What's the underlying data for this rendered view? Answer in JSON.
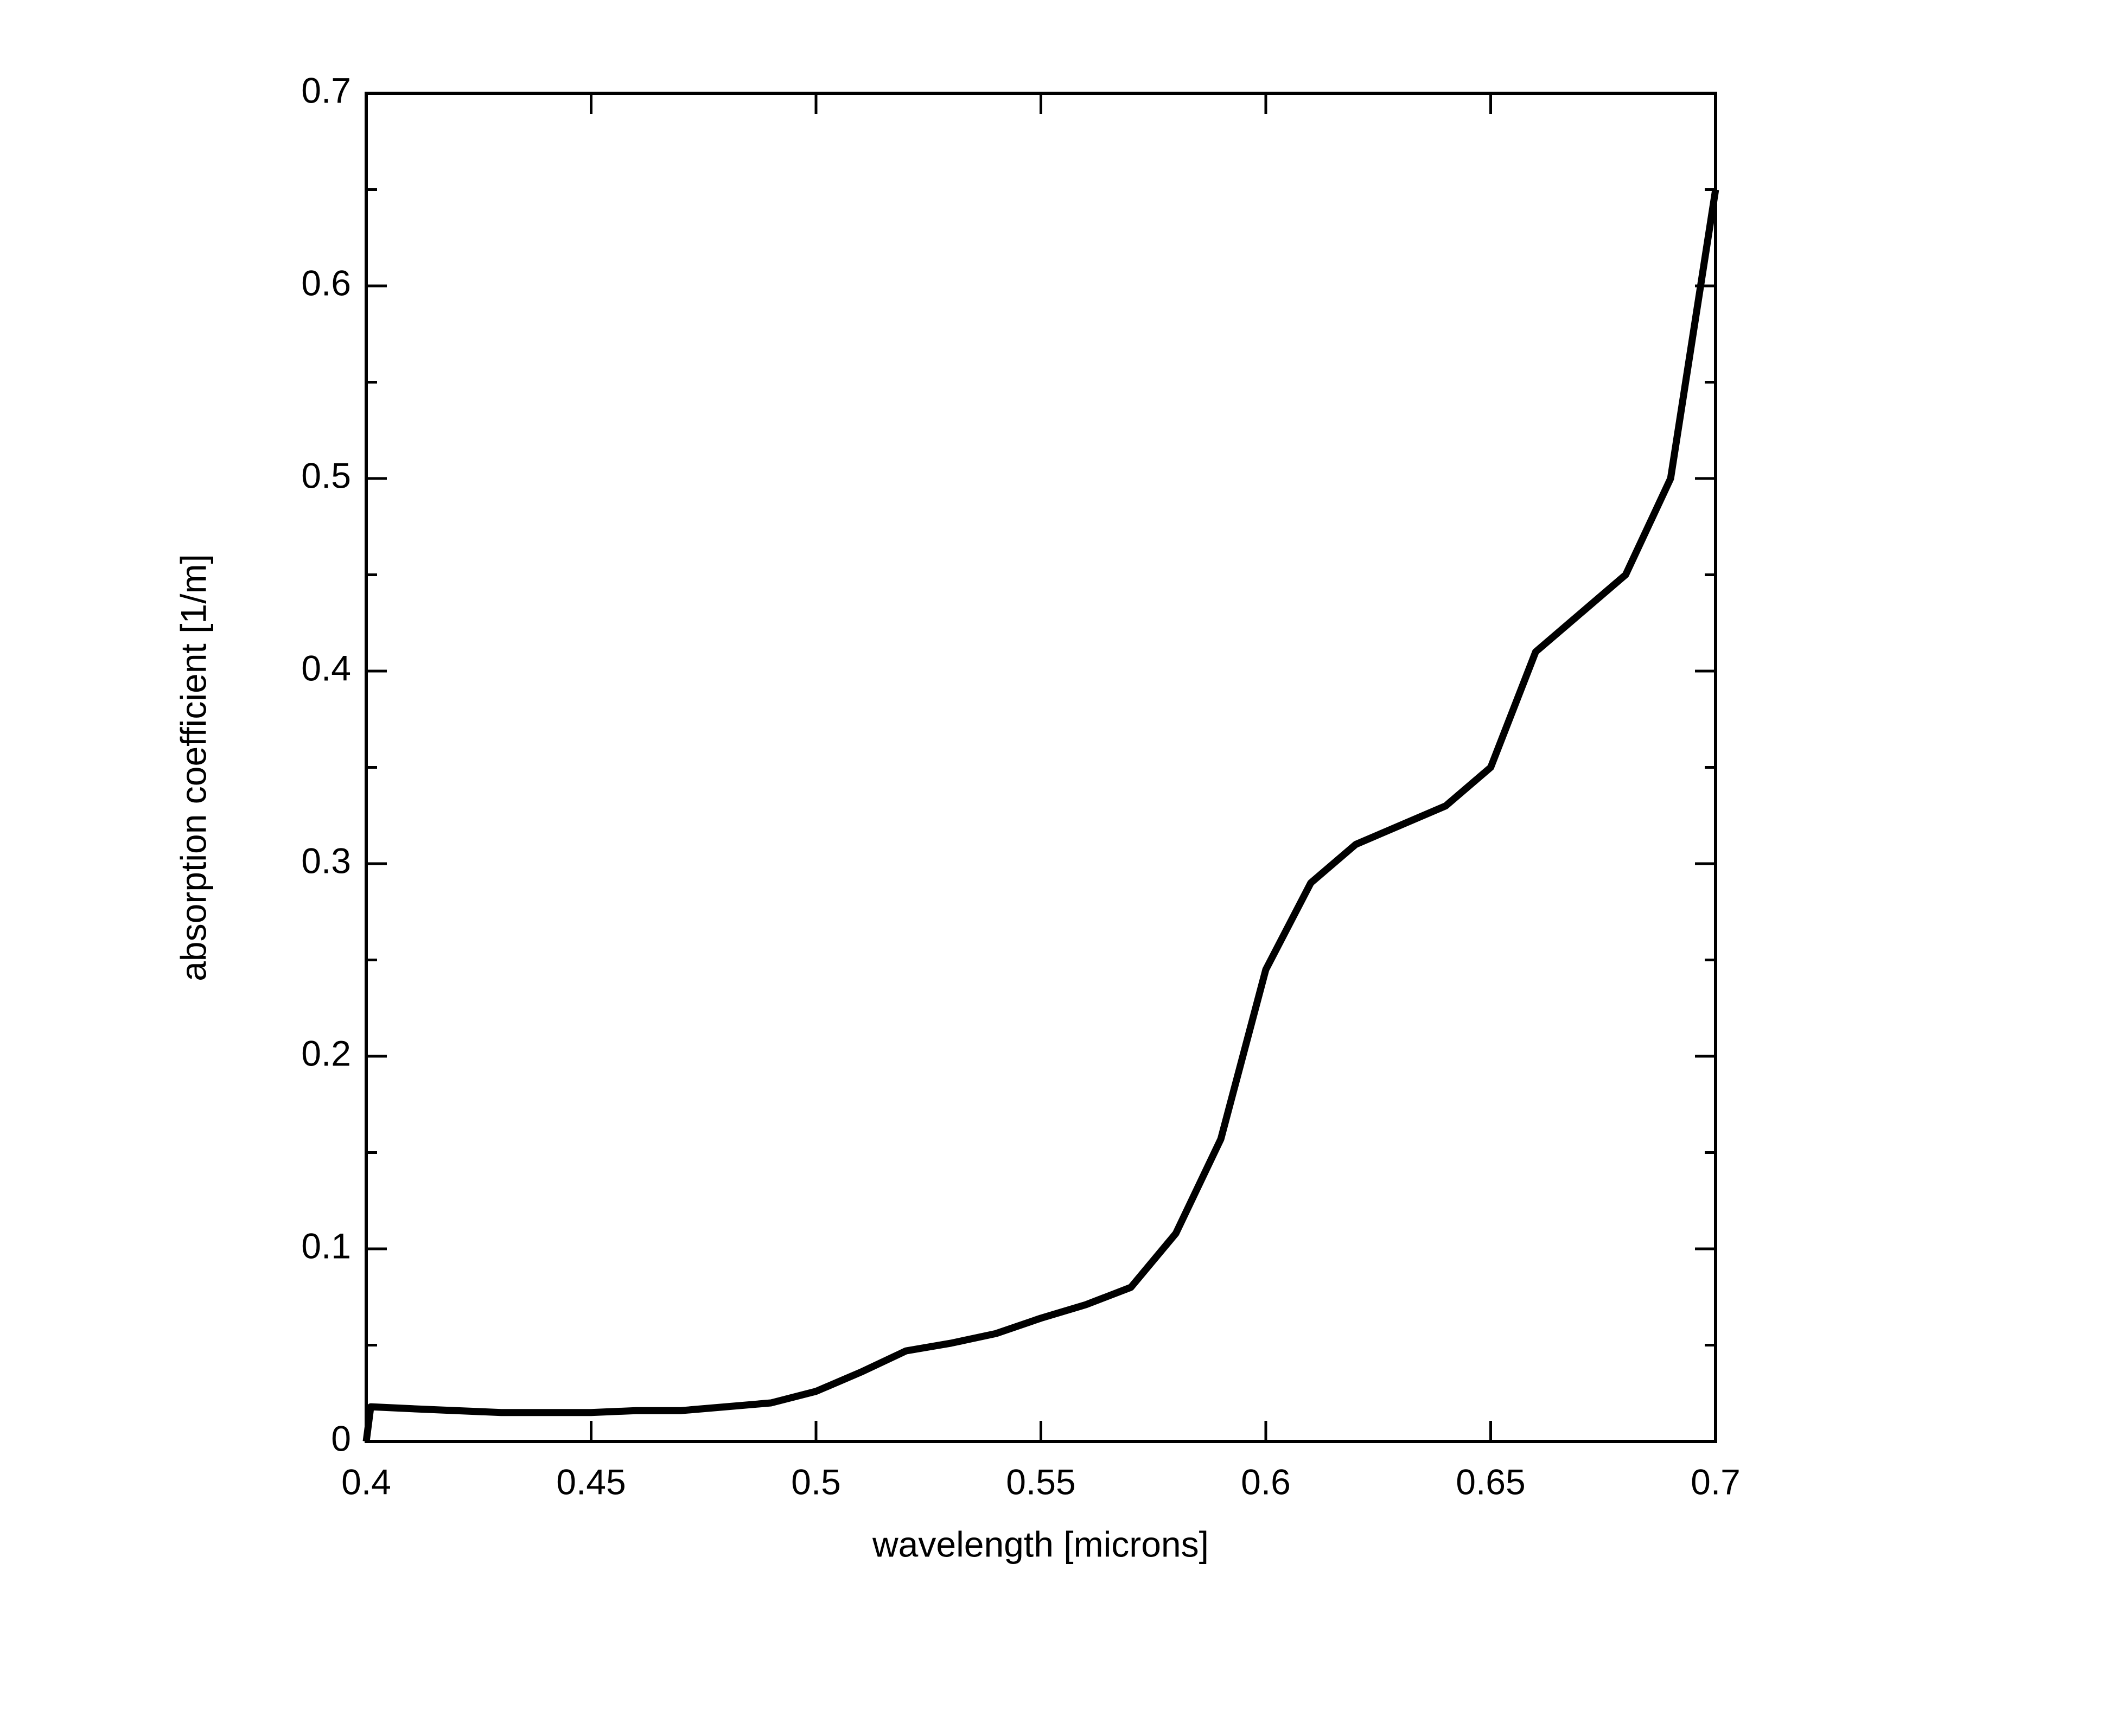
{
  "chart_data": {
    "type": "line",
    "xlabel": "wavelength [microns]",
    "ylabel": "absorption coefficient [1/m]",
    "x": [
      0.4,
      0.401,
      0.41,
      0.42,
      0.43,
      0.44,
      0.45,
      0.46,
      0.47,
      0.48,
      0.49,
      0.5,
      0.51,
      0.52,
      0.53,
      0.54,
      0.55,
      0.56,
      0.57,
      0.58,
      0.59,
      0.6,
      0.61,
      0.62,
      0.63,
      0.64,
      0.65,
      0.66,
      0.67,
      0.68,
      0.69,
      0.7
    ],
    "values": [
      0,
      0.018,
      0.017,
      0.016,
      0.015,
      0.015,
      0.015,
      0.016,
      0.016,
      0.018,
      0.02,
      0.026,
      0.036,
      0.047,
      0.051,
      0.056,
      0.064,
      0.071,
      0.08,
      0.108,
      0.157,
      0.245,
      0.29,
      0.31,
      0.32,
      0.33,
      0.35,
      0.41,
      0.43,
      0.45,
      0.5,
      0.65
    ],
    "color": "#000000",
    "xlim": [
      0.4,
      0.7
    ],
    "xticks": [
      0.4,
      0.45,
      0.5,
      0.55,
      0.6,
      0.65,
      0.7
    ],
    "ylim": [
      0,
      0.7
    ],
    "yticks": [
      0,
      0.1,
      0.2,
      0.3,
      0.4,
      0.5,
      0.6,
      0.7
    ],
    "yminorticks": [
      0.05,
      0.15,
      0.25,
      0.35,
      0.45,
      0.55,
      0.65
    ],
    "grid": false
  }
}
